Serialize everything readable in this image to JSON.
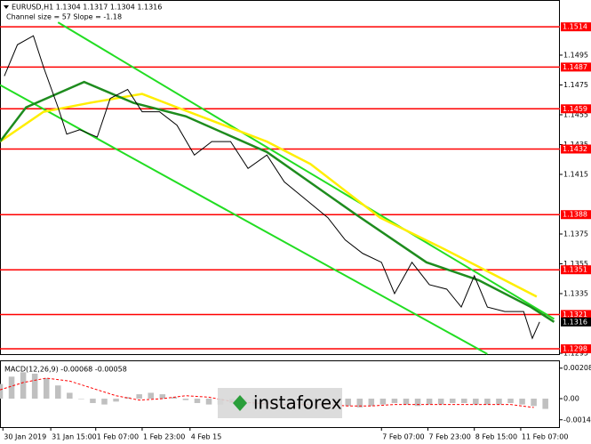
{
  "chart_data": {
    "type": "line",
    "title": "EURUSD,H1  1.1304 1.1317 1.1304 1.1316",
    "subtitle": "Channel size = 57 Slope = -1.18",
    "xlim": [
      0,
      193
    ],
    "xticks": [
      {
        "value": 1,
        "label": "30 Jan 2019"
      },
      {
        "value": 17.5,
        "label": "31 Jan 15:00"
      },
      {
        "value": 33,
        "label": "1 Feb 07:00"
      },
      {
        "value": 49,
        "label": "1 Feb 23:00"
      },
      {
        "value": 65.5,
        "label": "4 Feb 15"
      },
      {
        "value": 131.5,
        "label": "7 Feb 07:00"
      },
      {
        "value": 147.5,
        "label": "7 Feb 23:00"
      },
      {
        "value": 163.5,
        "label": "8 Feb 15:00"
      },
      {
        "value": 179.5,
        "label": "11 Feb 07:00"
      }
    ],
    "ylim": [
      1.12944,
      1.1532
    ],
    "yticks": [
      1.1495,
      1.1475,
      1.1455,
      1.1435,
      1.1415,
      1.1375,
      1.1355,
      1.1335,
      1.1295
    ],
    "series": [
      {
        "color": "#000000",
        "x": [
          1.5,
          6,
          11.5,
          15,
          20,
          23,
          27.5,
          33.5,
          38,
          44,
          49,
          55,
          61,
          67,
          73,
          79.5,
          85.5,
          92,
          98,
          105.5,
          113,
          119,
          125,
          131.5,
          136,
          142,
          148,
          154,
          159,
          163.5,
          168,
          174,
          180.5,
          183.5,
          186
        ],
        "values": [
          1.1481,
          1.1502,
          1.1508,
          1.1487,
          1.146,
          1.1442,
          1.1445,
          1.144,
          1.1466,
          1.1472,
          1.1457,
          1.1457,
          1.1448,
          1.1428,
          1.1437,
          1.1437,
          1.1419,
          1.1428,
          1.141,
          1.1398,
          1.1386,
          1.1371,
          1.1362,
          1.1356,
          1.1335,
          1.1356,
          1.1341,
          1.1338,
          1.1326,
          1.1347,
          1.1326,
          1.1323,
          1.1323,
          1.1305,
          1.1316
        ]
      },
      {
        "color": "#1e8c1e",
        "x": [
          0,
          9,
          29,
          46,
          64,
          92,
          122,
          147,
          165,
          183,
          191
        ],
        "values": [
          1.1437,
          1.146,
          1.1477,
          1.1463,
          1.1454,
          1.143,
          1.1389,
          1.1356,
          1.1344,
          1.1326,
          1.1316
        ]
      },
      {
        "color": "#ffee00",
        "x": [
          0,
          15,
          31,
          49,
          61,
          92,
          107,
          131,
          153,
          171,
          185
        ],
        "values": [
          1.1437,
          1.1457,
          1.1463,
          1.1469,
          1.146,
          1.1437,
          1.1422,
          1.1386,
          1.1365,
          1.1347,
          1.1333
        ]
      }
    ],
    "levels": {
      "color": "#ff0000",
      "values": [
        1.1514,
        1.1487,
        1.1459,
        1.1432,
        1.1388,
        1.1351,
        1.1321,
        1.1298
      ]
    },
    "current_price": 1.1316,
    "channel": {
      "color": "#22dd22",
      "lines": [
        {
          "x": [
            20,
            191
          ],
          "values": [
            1.1517,
            1.1318
          ]
        },
        {
          "x": [
            0,
            168
          ],
          "values": [
            1.1475,
            1.12945
          ]
        }
      ]
    },
    "indicator": {
      "type": "bar",
      "title": "MACD(12,26,9) -0.00068 -0.00058",
      "color": "#c0c0c0",
      "ylim": [
        -0.00194,
        0.00255
      ],
      "yticks": [
        0.00208,
        {
          "value": 0,
          "label": "0.00"
        },
        -0.00144
      ],
      "x": [
        0,
        4,
        8,
        12,
        16,
        20,
        24,
        28,
        32,
        36,
        40,
        44,
        48,
        52,
        56,
        60,
        64,
        68,
        72,
        76,
        80,
        84,
        88,
        92,
        96,
        100,
        104,
        108,
        112,
        116,
        120,
        124,
        128,
        132,
        136,
        140,
        144,
        148,
        152,
        156,
        160,
        164,
        168,
        172,
        176,
        180,
        184,
        188
      ],
      "values": [
        0.001,
        0.0015,
        0.0018,
        0.0017,
        0.0014,
        0.0009,
        0.0004,
        0.0,
        -0.0003,
        -0.0004,
        -0.0002,
        0.0001,
        0.0003,
        0.0004,
        0.0003,
        0.0001,
        -0.0001,
        -0.0003,
        -0.0004,
        -0.0004,
        -0.0003,
        -0.0004,
        -0.0005,
        -0.0004,
        -0.0003,
        -0.0004,
        -0.0005,
        -0.0005,
        -0.0004,
        -0.0004,
        -0.0005,
        -0.0006,
        -0.0005,
        -0.0004,
        -0.0003,
        -0.0004,
        -0.0005,
        -0.0004,
        -0.0004,
        -0.0003,
        -0.0003,
        -0.0004,
        -0.0004,
        -0.0004,
        -0.0003,
        -0.0004,
        -0.0005,
        -0.0007
      ],
      "signal": {
        "color": "#ff0000",
        "x": [
          0,
          8,
          16,
          24,
          32,
          40,
          48,
          56,
          64,
          72,
          80,
          88,
          96,
          104,
          112,
          120,
          128,
          136,
          144,
          152,
          160,
          168,
          176,
          184
        ],
        "values": [
          0.0006,
          0.0011,
          0.0014,
          0.0012,
          0.0007,
          0.0002,
          -0.0001,
          0.0,
          0.0002,
          0.0001,
          -0.0002,
          -0.0003,
          -0.0004,
          -0.0004,
          -0.0004,
          -0.0005,
          -0.0005,
          -0.0004,
          -0.0004,
          -0.0004,
          -0.0004,
          -0.0004,
          -0.0004,
          -0.0006
        ]
      }
    },
    "watermark": "instaforex"
  }
}
